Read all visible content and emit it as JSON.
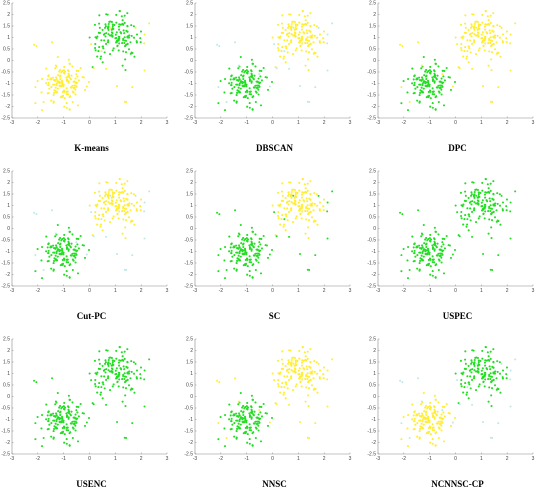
{
  "colors": {
    "green": "#22dd22",
    "yellow": "#ffee33",
    "cyan": "#bfe8e8",
    "axis": "#888888"
  },
  "axes": {
    "xlim": [
      -3,
      3
    ],
    "ylim": [
      -2.5,
      2.5
    ],
    "xticks": [
      "-3",
      "-2",
      "-1",
      "0",
      "1",
      "2",
      "3"
    ],
    "yticks": [
      "2.5",
      "2",
      "1.5",
      "1",
      "0.5",
      "0",
      "-0.5",
      "-1",
      "-1.5",
      "-2",
      "-2.5"
    ]
  },
  "chart_data": [
    {
      "type": "scatter",
      "title": "K-means",
      "clusters": [
        {
          "color": "yellow",
          "center": [
            -1,
            -1
          ],
          "spread": 0.42,
          "n": 150
        },
        {
          "color": "green",
          "center": [
            1,
            1
          ],
          "spread": 0.45,
          "n": 150
        }
      ],
      "noise_color": "yellow"
    },
    {
      "type": "scatter",
      "title": "DBSCAN",
      "clusters": [
        {
          "color": "green",
          "center": [
            -1,
            -1
          ],
          "spread": 0.42,
          "n": 150
        },
        {
          "color": "yellow",
          "center": [
            1,
            1
          ],
          "spread": 0.45,
          "n": 150
        }
      ],
      "noise_color": "cyan"
    },
    {
      "type": "scatter",
      "title": "DPC",
      "clusters": [
        {
          "color": "green",
          "center": [
            -1,
            -1
          ],
          "spread": 0.42,
          "n": 150
        },
        {
          "color": "yellow",
          "center": [
            1,
            1
          ],
          "spread": 0.45,
          "n": 150
        }
      ],
      "noise_color": "yellow"
    },
    {
      "type": "scatter",
      "title": "Cut-PC",
      "clusters": [
        {
          "color": "green",
          "center": [
            -1,
            -1
          ],
          "spread": 0.42,
          "n": 150
        },
        {
          "color": "yellow",
          "center": [
            1,
            1
          ],
          "spread": 0.45,
          "n": 150
        }
      ],
      "noise_color": "cyan"
    },
    {
      "type": "scatter",
      "title": "SC",
      "clusters": [
        {
          "color": "green",
          "center": [
            -1,
            -1
          ],
          "spread": 0.42,
          "n": 150
        },
        {
          "color": "yellow",
          "center": [
            1,
            1
          ],
          "spread": 0.45,
          "n": 150
        }
      ],
      "noise_color": "green"
    },
    {
      "type": "scatter",
      "title": "USPEC",
      "clusters": [
        {
          "color": "green",
          "center": [
            -1,
            -1
          ],
          "spread": 0.42,
          "n": 150
        },
        {
          "color": "green",
          "center": [
            1,
            1
          ],
          "spread": 0.45,
          "n": 150
        }
      ],
      "noise_color": "green"
    },
    {
      "type": "scatter",
      "title": "USENC",
      "clusters": [
        {
          "color": "green",
          "center": [
            -1,
            -1
          ],
          "spread": 0.42,
          "n": 150
        },
        {
          "color": "green",
          "center": [
            1,
            1
          ],
          "spread": 0.45,
          "n": 150
        }
      ],
      "noise_color": "green"
    },
    {
      "type": "scatter",
      "title": "NNSC",
      "clusters": [
        {
          "color": "green",
          "center": [
            -1,
            -1
          ],
          "spread": 0.42,
          "n": 150
        },
        {
          "color": "yellow",
          "center": [
            1,
            1
          ],
          "spread": 0.45,
          "n": 150
        }
      ],
      "noise_color": "yellow"
    },
    {
      "type": "scatter",
      "title": "NCNNSC-CP",
      "clusters": [
        {
          "color": "yellow",
          "center": [
            -1,
            -1
          ],
          "spread": 0.42,
          "n": 150
        },
        {
          "color": "green",
          "center": [
            1,
            1
          ],
          "spread": 0.45,
          "n": 150
        }
      ],
      "noise_color": "cyan"
    }
  ]
}
